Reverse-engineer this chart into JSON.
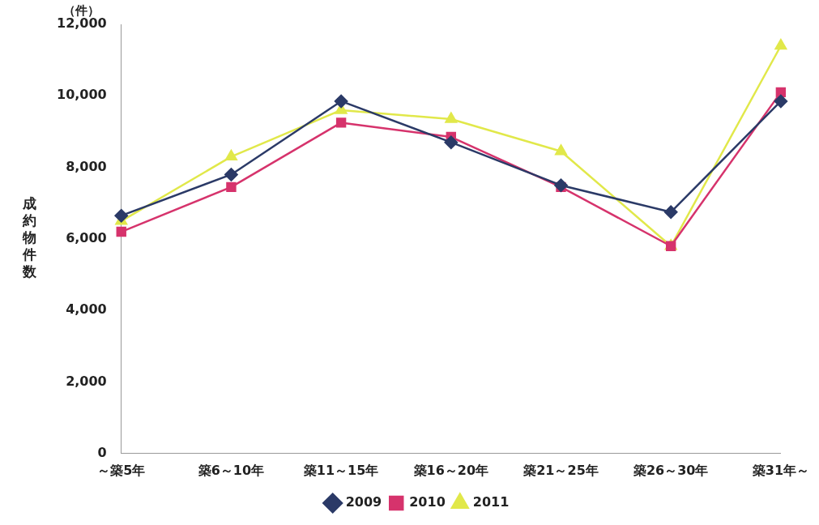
{
  "chart_data": {
    "type": "line",
    "ylabel": "成約物件数",
    "annotations": [
      "（件）"
    ],
    "categories": [
      "～築5年",
      "築6～10年",
      "築11～15年",
      "築16～20年",
      "築21～25年",
      "築26～30年",
      "築31年～"
    ],
    "series": [
      {
        "name": "2009",
        "color": "#2b3a67",
        "marker": "diamond",
        "values": [
          6650,
          7800,
          9850,
          8700,
          7500,
          6750,
          9850
        ]
      },
      {
        "name": "2010",
        "color": "#d6336c",
        "marker": "square",
        "values": [
          6200,
          7450,
          9250,
          8850,
          7450,
          5800,
          10100
        ]
      },
      {
        "name": "2011",
        "color": "#e1e84a",
        "marker": "triangle",
        "values": [
          6500,
          8300,
          9600,
          9350,
          8450,
          5800,
          11400
        ]
      }
    ],
    "ylim": [
      0,
      12000
    ],
    "yticks": [
      0,
      {
        "value": 2000,
        "label": "2,000"
      },
      {
        "value": 4000,
        "label": "4,000"
      },
      {
        "value": 6000,
        "label": "6,000"
      },
      {
        "value": 8000,
        "label": "8,000"
      },
      {
        "value": 10000,
        "label": "10,000"
      },
      {
        "value": 12000,
        "label": "12,000"
      }
    ],
    "grid": false,
    "legend": "bottom",
    "line_style": "solid"
  }
}
